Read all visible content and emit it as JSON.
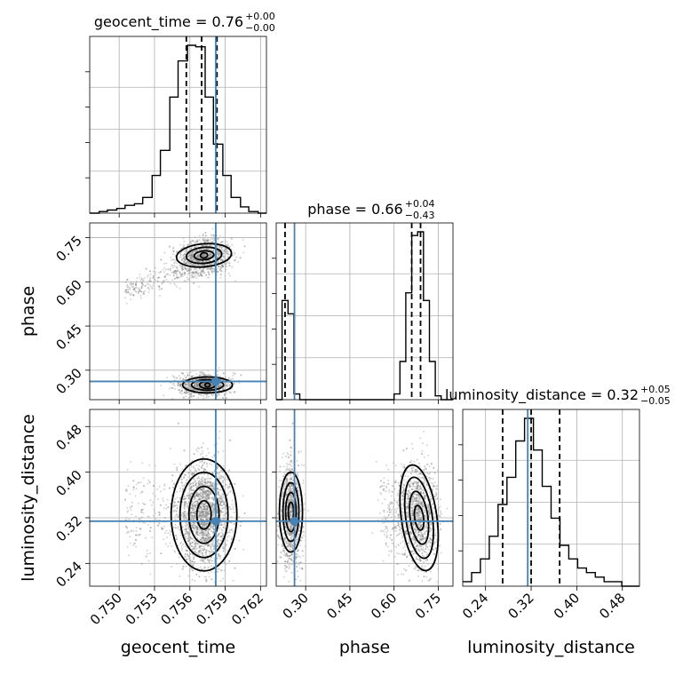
{
  "chart_data": {
    "type": "corner",
    "parameters": [
      "geocent_time",
      "phase",
      "luminosity_distance"
    ],
    "titles": [
      {
        "text": "geocent_time = 0.76",
        "plus": "+0.00",
        "minus": "−0.00"
      },
      {
        "text": "phase = 0.66",
        "plus": "+0.04",
        "minus": "−0.43"
      },
      {
        "text": "luminosity_distance = 0.32",
        "plus": "+0.05",
        "minus": "−0.05"
      }
    ],
    "ranges": {
      "geocent_time": [
        0.7475,
        0.7625
      ],
      "phase": [
        0.2,
        0.8
      ],
      "luminosity_distance": [
        0.2,
        0.51
      ]
    },
    "ticks": {
      "geocent_time": [
        0.75,
        0.753,
        0.756,
        0.759,
        0.762
      ],
      "phase": [
        0.3,
        0.45,
        0.6,
        0.75
      ],
      "luminosity_distance": [
        0.24,
        0.32,
        0.4,
        0.48
      ]
    },
    "tick_labels": {
      "geocent_time": [
        "0.750",
        "0.753",
        "0.756",
        "0.759",
        "0.762"
      ],
      "phase": [
        "0.30",
        "0.45",
        "0.60",
        "0.75"
      ],
      "luminosity_distance": [
        "0.24",
        "0.32",
        "0.40",
        "0.48"
      ]
    },
    "truths": {
      "geocent_time": 0.7582,
      "phase": 0.262,
      "luminosity_distance": 0.314
    },
    "quantiles": {
      "geocent_time": [
        0.7557,
        0.757,
        0.7583
      ],
      "phase": [
        0.23,
        0.66,
        0.69
      ],
      "luminosity_distance": [
        0.27,
        0.32,
        0.37
      ]
    },
    "histograms": {
      "geocent_time": {
        "edges": [
          0.7475,
          0.7483,
          0.749,
          0.7498,
          0.7505,
          0.7513,
          0.752,
          0.7528,
          0.7535,
          0.7543,
          0.755,
          0.7558,
          0.7565,
          0.7573,
          0.758,
          0.7588,
          0.7595,
          0.7603,
          0.761,
          0.7618,
          0.7625
        ],
        "counts": [
          0,
          1,
          2,
          3,
          5,
          6,
          10,
          24,
          40,
          74,
          97,
          107,
          106,
          74,
          44,
          24,
          10,
          4,
          1,
          0
        ]
      },
      "phase": {
        "edges": [
          0.2,
          0.22,
          0.24,
          0.26,
          0.28,
          0.3,
          0.32,
          0.34,
          0.36,
          0.38,
          0.4,
          0.42,
          0.44,
          0.46,
          0.48,
          0.5,
          0.52,
          0.54,
          0.56,
          0.58,
          0.6,
          0.62,
          0.64,
          0.66,
          0.68,
          0.7,
          0.72,
          0.74,
          0.76,
          0.78,
          0.8
        ],
        "counts": [
          0,
          52,
          45,
          3,
          0,
          0,
          0,
          0,
          0,
          0,
          0,
          0,
          0,
          0,
          0,
          0,
          0,
          0,
          0,
          0,
          3,
          20,
          56,
          86,
          88,
          52,
          20,
          2,
          0,
          0
        ]
      },
      "luminosity_distance": {
        "edges": [
          0.2,
          0.2155,
          0.231,
          0.2465,
          0.262,
          0.2775,
          0.293,
          0.3085,
          0.324,
          0.3395,
          0.355,
          0.3705,
          0.386,
          0.4015,
          0.417,
          0.4325,
          0.448,
          0.4635,
          0.479,
          0.4945,
          0.51
        ],
        "counts": [
          1,
          3,
          6,
          11,
          18,
          24,
          32,
          37,
          30,
          22,
          15,
          9,
          6,
          4,
          3,
          2,
          1,
          1,
          0,
          0
        ]
      }
    },
    "scatter_gray": "#888888",
    "truth_color": "#4682b4"
  }
}
